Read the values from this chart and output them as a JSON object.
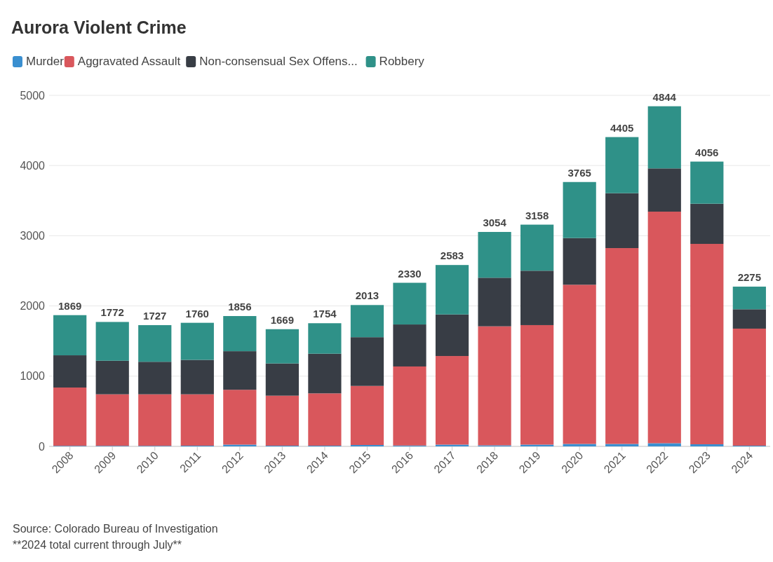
{
  "chart_data": {
    "type": "bar",
    "title": "Aurora Violent Crime",
    "stacked": true,
    "legend": "top left",
    "grid": "y",
    "categories": [
      "2008",
      "2009",
      "2010",
      "2011",
      "2012",
      "2013",
      "2014",
      "2015",
      "2016",
      "2017",
      "2018",
      "2019",
      "2020",
      "2021",
      "2022",
      "2023",
      "2024"
    ],
    "series": [
      {
        "name": "Murder",
        "color": "#3a8fd0",
        "values": [
          8,
          8,
          8,
          10,
          25,
          10,
          10,
          20,
          12,
          25,
          15,
          25,
          35,
          35,
          45,
          30,
          10
        ]
      },
      {
        "name": "Aggravated Assault",
        "color": "#d9575c",
        "values": [
          830,
          734,
          734,
          732,
          781,
          712,
          745,
          841,
          1126,
          1262,
          1695,
          1702,
          2267,
          2789,
          3298,
          2854,
          1667
        ]
      },
      {
        "name": "Non-consensual Sex Offens...",
        "color": "#383d45",
        "values": [
          459,
          478,
          463,
          490,
          550,
          459,
          565,
          694,
          598,
          592,
          692,
          775,
          665,
          782,
          616,
          572,
          276
        ]
      },
      {
        "name": "Robbery",
        "color": "#2f9188",
        "values": [
          572,
          552,
          522,
          528,
          500,
          488,
          434,
          458,
          594,
          704,
          652,
          656,
          798,
          799,
          885,
          600,
          322
        ]
      }
    ],
    "totals": [
      "1869",
      "1772",
      "1727",
      "1760",
      "1856",
      "1669",
      "1754",
      "2013",
      "2330",
      "2583",
      "3054",
      "3158",
      "3765",
      "4405",
      "4844",
      "4056",
      "2275"
    ],
    "ylim": [
      0,
      5000
    ],
    "yticks": [
      0,
      1000,
      2000,
      3000,
      4000,
      5000
    ],
    "annotations": [
      "Source: Colorado Bureau of Investigation",
      "**2024 total current through July**"
    ]
  }
}
